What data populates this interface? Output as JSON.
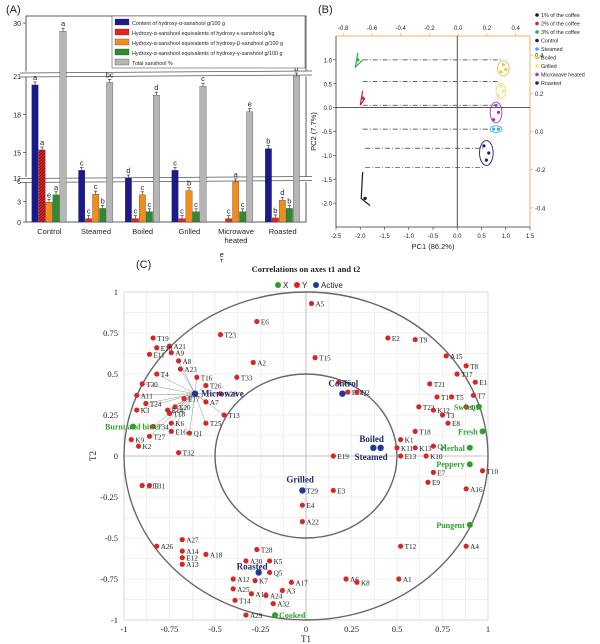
{
  "panel_labels": [
    "(A)",
    "(B)",
    "(C)"
  ],
  "chart_data": [
    {
      "type": "bar",
      "panel": "(A)",
      "categories": [
        "Control",
        "Steamed",
        "Boiled",
        "Grilled",
        "Microwave heated",
        "Roasted"
      ],
      "ylim": [
        0,
        30
      ],
      "yticks": [
        0,
        3,
        6,
        13,
        15,
        18,
        21,
        30
      ],
      "broken_axis": true,
      "legend_position": "top-right",
      "colors": [
        "#1a1a8c",
        "#e8231f",
        "#f28c1e",
        "#2e8b2e",
        "#b5b5b5"
      ],
      "series": [
        {
          "name": "Content of hydroxy-α-sanshool g/100 g",
          "values": [
            20.3,
            13.6,
            13.0,
            13.6,
            6.4,
            15.3
          ],
          "labels": [
            "a",
            "c",
            "d",
            "c",
            "e",
            "b"
          ]
        },
        {
          "name": "Hydroxy-α-sanshool equivalents of hydroxy-ε-sanshool g/kg",
          "values": [
            15.2,
            0.5,
            0.5,
            0.5,
            0.5,
            0.6
          ],
          "labels": [
            "a",
            "c",
            "c",
            "c",
            "c",
            "b"
          ]
        },
        {
          "name": "Hydroxy-α-sanshool equivalents of hydroxy-β-sanshool g/100 g",
          "values": [
            2.9,
            4.1,
            4.0,
            4.6,
            5.9,
            3.2
          ],
          "labels": [
            "e",
            "c",
            "c",
            "b",
            "a",
            "d"
          ]
        },
        {
          "name": "Hydroxy-α-sanshool equivalents of hydroxy-γ-sanshool g/100 g",
          "values": [
            4.0,
            2.0,
            1.5,
            1.5,
            1.5,
            2.0
          ],
          "labels": [
            "a",
            "b",
            "c",
            "c",
            "c",
            "b"
          ]
        },
        {
          "name": "Total sanshool %",
          "values": [
            28.5,
            20.5,
            19.5,
            20.2,
            18.2,
            21.0
          ],
          "labels": [
            "a",
            "bc",
            "d",
            "c",
            "e",
            "b"
          ]
        }
      ],
      "xlabel": "",
      "ylabel": ""
    },
    {
      "type": "scatter",
      "panel": "(B)",
      "xlabel": "PC1 (86.2%)",
      "ylabel": "PC2 (7.7%)",
      "xlim": [
        -2.5,
        1.5
      ],
      "ylim": [
        -2.5,
        1.5
      ],
      "xticks": [
        -2.5,
        -2.0,
        -1.5,
        -1.0,
        -0.5,
        0.0,
        0.5,
        1.0,
        1.5
      ],
      "yticks": [
        -2.0,
        -1.5,
        -1.0,
        -0.5,
        0.0,
        0.5,
        1.0
      ],
      "top_xticks": [
        -0.8,
        -0.6,
        -0.4,
        -0.2,
        0.0,
        0.2,
        0.4
      ],
      "right_yticks": [
        -0.4,
        -0.2,
        0.0,
        0.2,
        0.4
      ],
      "legend_position": "right",
      "legend": [
        {
          "label": "1% of the coffee",
          "color": "#1a1a1a"
        },
        {
          "label": "2% of the coffee",
          "color": "#d0203a"
        },
        {
          "label": "3% of the coffee",
          "color": "#22b14c"
        },
        {
          "label": "Control",
          "color": "#1a1a8c"
        },
        {
          "label": "Steamed",
          "color": "#3fa9f5"
        },
        {
          "label": "Boiled",
          "color": "#f3c91a"
        },
        {
          "label": "Grilled",
          "color": "#ffe36e"
        },
        {
          "label": "Microwave heated",
          "color": "#9a3fbf"
        },
        {
          "label": "Roasted",
          "color": "#222266"
        }
      ],
      "points": [
        {
          "group": "Boiled",
          "x": 0.95,
          "y": 0.9
        },
        {
          "group": "Boiled",
          "x": 1.0,
          "y": 0.8
        },
        {
          "group": "Boiled",
          "x": 0.9,
          "y": 0.75
        },
        {
          "group": "Grilled",
          "x": 0.9,
          "y": 0.45
        },
        {
          "group": "Grilled",
          "x": 0.95,
          "y": 0.35
        },
        {
          "group": "Grilled",
          "x": 0.85,
          "y": 0.25
        },
        {
          "group": "Microwave heated",
          "x": 0.8,
          "y": 0.05
        },
        {
          "group": "Microwave heated",
          "x": 0.85,
          "y": -0.1
        },
        {
          "group": "Microwave heated",
          "x": 0.75,
          "y": -0.25
        },
        {
          "group": "Steamed",
          "x": 0.75,
          "y": -0.45
        },
        {
          "group": "Steamed",
          "x": 0.85,
          "y": -0.45
        },
        {
          "group": "Control",
          "x": 0.55,
          "y": -0.8
        },
        {
          "group": "Control",
          "x": 0.65,
          "y": -0.95
        },
        {
          "group": "Control",
          "x": 0.6,
          "y": -1.1
        },
        {
          "group": "3% of the coffee",
          "x": -2.05,
          "y": 1.0
        },
        {
          "group": "2% of the coffee",
          "x": -1.95,
          "y": 0.2
        },
        {
          "group": "1% of the coffee",
          "x": -1.9,
          "y": -1.9
        }
      ]
    },
    {
      "type": "scatter",
      "panel": "(C)",
      "title": "Correlations on axes t1 and t2",
      "xlabel": "T1",
      "ylabel": "T2",
      "xlim": [
        -1,
        1
      ],
      "ylim": [
        -1,
        1
      ],
      "xticks": [
        -1,
        -0.75,
        -0.5,
        -0.25,
        0,
        0.25,
        0.5,
        0.75,
        1
      ],
      "yticks": [
        -1,
        -0.75,
        -0.5,
        -0.25,
        0,
        0.25,
        0.5,
        0.75,
        1
      ],
      "legend": [
        {
          "label": "X",
          "color": "#2ca02c"
        },
        {
          "label": "Y",
          "color": "#d62728"
        },
        {
          "label": "Active",
          "color": "#1f3a93"
        }
      ],
      "legend_position": "top",
      "circles": [
        0.5,
        1.0
      ],
      "active_points": [
        {
          "label": "Control",
          "x": 0.2,
          "y": 0.38
        },
        {
          "label": "Boiled",
          "x": 0.37,
          "y": 0.05
        },
        {
          "label": "Steamed",
          "x": 0.41,
          "y": 0.05
        },
        {
          "label": "Grilled",
          "x": -0.02,
          "y": -0.21
        },
        {
          "label": "Microwave",
          "x": -0.61,
          "y": 0.38
        },
        {
          "label": "Roasted",
          "x": -0.26,
          "y": -0.71
        }
      ],
      "x_points": [
        {
          "label": "Sweet",
          "x": 0.95,
          "y": 0.3
        },
        {
          "label": "Fresh",
          "x": 0.97,
          "y": 0.15
        },
        {
          "label": "Herbal",
          "x": 0.9,
          "y": 0.05
        },
        {
          "label": "Peppery",
          "x": 0.9,
          "y": -0.05
        },
        {
          "label": "Pungent",
          "x": 0.9,
          "y": -0.42
        },
        {
          "label": "Burnt and bitter",
          "x": -0.95,
          "y": 0.18
        },
        {
          "label": "Cooked",
          "x": -0.17,
          "y": -0.97
        }
      ],
      "y_points": [
        {
          "label": "A5",
          "x": 0.03,
          "y": 0.93
        },
        {
          "label": "E6",
          "x": -0.27,
          "y": 0.82
        },
        {
          "label": "T23",
          "x": -0.47,
          "y": 0.74
        },
        {
          "label": "E2",
          "x": 0.45,
          "y": 0.72
        },
        {
          "label": "T9",
          "x": 0.6,
          "y": 0.71
        },
        {
          "label": "T19",
          "x": -0.84,
          "y": 0.72
        },
        {
          "label": "A21",
          "x": -0.75,
          "y": 0.67
        },
        {
          "label": "E10",
          "x": -0.82,
          "y": 0.66
        },
        {
          "label": "A9",
          "x": -0.74,
          "y": 0.63
        },
        {
          "label": "E11",
          "x": -0.86,
          "y": 0.62
        },
        {
          "label": "A8",
          "x": -0.7,
          "y": 0.58
        },
        {
          "label": "T15",
          "x": 0.05,
          "y": 0.6
        },
        {
          "label": "A2",
          "x": -0.29,
          "y": 0.57
        },
        {
          "label": "A23",
          "x": -0.69,
          "y": 0.53
        },
        {
          "label": "A15",
          "x": 0.77,
          "y": 0.61
        },
        {
          "label": "T8",
          "x": 0.88,
          "y": 0.55
        },
        {
          "label": "T17",
          "x": 0.83,
          "y": 0.5
        },
        {
          "label": "E1",
          "x": 0.93,
          "y": 0.45
        },
        {
          "label": "T6",
          "x": 0.18,
          "y": 0.45
        },
        {
          "label": "E18",
          "x": 0.23,
          "y": 0.39
        },
        {
          "label": "Q2",
          "x": 0.28,
          "y": 0.39
        },
        {
          "label": "T21",
          "x": 0.68,
          "y": 0.44
        },
        {
          "label": "T1",
          "x": 0.72,
          "y": 0.36
        },
        {
          "label": "T5",
          "x": 0.8,
          "y": 0.36
        },
        {
          "label": "T7",
          "x": 0.92,
          "y": 0.37
        },
        {
          "label": "T33",
          "x": -0.38,
          "y": 0.48
        },
        {
          "label": "T16",
          "x": -0.6,
          "y": 0.48
        },
        {
          "label": "T4",
          "x": -0.82,
          "y": 0.5
        },
        {
          "label": "T30",
          "x": -0.9,
          "y": 0.44
        },
        {
          "label": "T26",
          "x": -0.55,
          "y": 0.43
        },
        {
          "label": "A28",
          "x": -0.47,
          "y": 0.38
        },
        {
          "label": "A7",
          "x": -0.55,
          "y": 0.33
        },
        {
          "label": "E17",
          "x": -0.67,
          "y": 0.35
        },
        {
          "label": "E20",
          "x": -0.72,
          "y": 0.3
        },
        {
          "label": "A11",
          "x": -0.93,
          "y": 0.37
        },
        {
          "label": "T24",
          "x": -0.88,
          "y": 0.32
        },
        {
          "label": "K3",
          "x": -0.93,
          "y": 0.28
        },
        {
          "label": "E14",
          "x": -0.76,
          "y": 0.28
        },
        {
          "label": "T18",
          "x": -0.75,
          "y": 0.26
        },
        {
          "label": "Q3",
          "x": 0.88,
          "y": 0.3
        },
        {
          "label": "T22",
          "x": 0.62,
          "y": 0.3
        },
        {
          "label": "K12",
          "x": 0.7,
          "y": 0.28
        },
        {
          "label": "T3",
          "x": 0.75,
          "y": 0.25
        },
        {
          "label": "E8",
          "x": 0.78,
          "y": 0.2
        },
        {
          "label": "T13",
          "x": -0.45,
          "y": 0.25
        },
        {
          "label": "T25",
          "x": -0.55,
          "y": 0.2
        },
        {
          "label": "K6",
          "x": -0.74,
          "y": 0.2
        },
        {
          "label": "T34",
          "x": -0.84,
          "y": 0.18
        },
        {
          "label": "Q1",
          "x": -0.64,
          "y": 0.14
        },
        {
          "label": "E16",
          "x": -0.74,
          "y": 0.15
        },
        {
          "label": "T27",
          "x": -0.86,
          "y": 0.12
        },
        {
          "label": "K9",
          "x": -0.96,
          "y": 0.1
        },
        {
          "label": "K2",
          "x": -0.92,
          "y": 0.06
        },
        {
          "label": "T18b",
          "x": 0.6,
          "y": 0.15
        },
        {
          "label": "K1",
          "x": 0.52,
          "y": 0.1
        },
        {
          "label": "K11",
          "x": 0.5,
          "y": 0.05
        },
        {
          "label": "K13",
          "x": 0.6,
          "y": 0.05
        },
        {
          "label": "Q4",
          "x": 0.7,
          "y": 0.06
        },
        {
          "label": "K10",
          "x": 0.66,
          "y": 0.0
        },
        {
          "label": "E13",
          "x": 0.52,
          "y": 0.0
        },
        {
          "label": "E19",
          "x": 0.15,
          "y": 0.0
        },
        {
          "label": "E7",
          "x": 0.7,
          "y": -0.1
        },
        {
          "label": "E9",
          "x": 0.67,
          "y": -0.16
        },
        {
          "label": "T10",
          "x": 0.97,
          "y": -0.09
        },
        {
          "label": "A16",
          "x": 0.88,
          "y": -0.2
        },
        {
          "label": "T32",
          "x": -0.7,
          "y": 0.02
        },
        {
          "label": "A19",
          "x": -0.9,
          "y": -0.18
        },
        {
          "label": "T31",
          "x": -0.86,
          "y": -0.18
        },
        {
          "label": "T29",
          "x": -0.02,
          "y": -0.21
        },
        {
          "label": "E3",
          "x": 0.15,
          "y": -0.21
        },
        {
          "label": "E4",
          "x": -0.02,
          "y": -0.3
        },
        {
          "label": "A22",
          "x": -0.02,
          "y": -0.4
        },
        {
          "label": "A27",
          "x": -0.68,
          "y": -0.51
        },
        {
          "label": "A26",
          "x": -0.82,
          "y": -0.55
        },
        {
          "label": "A14",
          "x": -0.68,
          "y": -0.58
        },
        {
          "label": "A18",
          "x": -0.55,
          "y": -0.6
        },
        {
          "label": "E12",
          "x": -0.68,
          "y": -0.62
        },
        {
          "label": "A13",
          "x": -0.68,
          "y": -0.66
        },
        {
          "label": "T12",
          "x": 0.52,
          "y": -0.55
        },
        {
          "label": "A4",
          "x": 0.88,
          "y": -0.55
        },
        {
          "label": "T28",
          "x": -0.27,
          "y": -0.57
        },
        {
          "label": "A30",
          "x": -0.33,
          "y": -0.64
        },
        {
          "label": "K5",
          "x": -0.2,
          "y": -0.64
        },
        {
          "label": "Q5",
          "x": -0.2,
          "y": -0.71
        },
        {
          "label": "A12",
          "x": -0.4,
          "y": -0.75
        },
        {
          "label": "K7",
          "x": -0.28,
          "y": -0.76
        },
        {
          "label": "A17",
          "x": -0.08,
          "y": -0.77
        },
        {
          "label": "A6",
          "x": 0.22,
          "y": -0.75
        },
        {
          "label": "K8",
          "x": 0.28,
          "y": -0.77
        },
        {
          "label": "A1",
          "x": 0.51,
          "y": -0.75
        },
        {
          "label": "A25",
          "x": -0.4,
          "y": -0.81
        },
        {
          "label": "A10",
          "x": -0.3,
          "y": -0.84
        },
        {
          "label": "A24",
          "x": -0.22,
          "y": -0.85
        },
        {
          "label": "A3",
          "x": -0.13,
          "y": -0.82
        },
        {
          "label": "T14",
          "x": -0.39,
          "y": -0.88
        },
        {
          "label": "A32",
          "x": -0.18,
          "y": -0.9
        },
        {
          "label": "A29",
          "x": -0.33,
          "y": -0.97
        }
      ]
    }
  ]
}
